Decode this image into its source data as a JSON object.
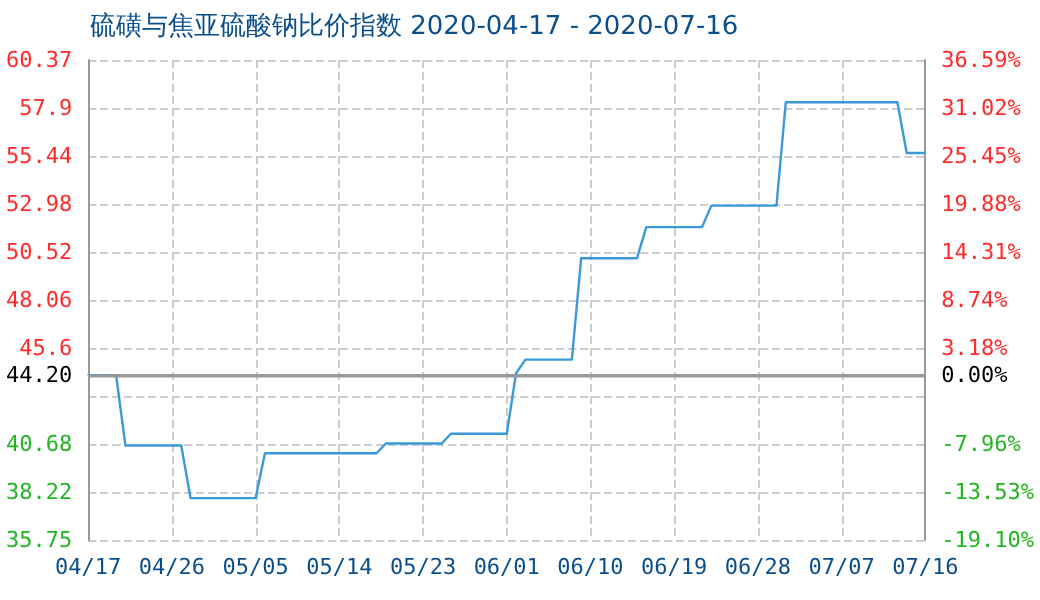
{
  "chart_data": {
    "type": "line",
    "title": "硫磺与焦亚硫酸钠比价指数 2020-04-17 - 2020-07-16",
    "x": [
      "2020-04-17",
      "2020-04-20",
      "2020-04-21",
      "2020-04-27",
      "2020-04-28",
      "2020-05-05",
      "2020-05-06",
      "2020-05-18",
      "2020-05-19",
      "2020-05-25",
      "2020-05-26",
      "2020-06-01",
      "2020-06-02",
      "2020-06-03",
      "2020-06-08",
      "2020-06-09",
      "2020-06-15",
      "2020-06-16",
      "2020-06-22",
      "2020-06-23",
      "2020-06-30",
      "2020-07-01",
      "2020-07-13",
      "2020-07-14",
      "2020-07-16"
    ],
    "series": [
      {
        "color": "#3a9ad9",
        "values": [
          44.2,
          44.2,
          40.6,
          40.6,
          37.9,
          37.9,
          40.2,
          40.2,
          40.7,
          40.7,
          41.2,
          41.2,
          44.3,
          45.0,
          45.0,
          50.2,
          50.2,
          51.8,
          51.8,
          52.9,
          52.9,
          58.2,
          58.2,
          55.6,
          55.6
        ]
      }
    ],
    "xlim": [
      "2020-04-17",
      "2020-07-16"
    ],
    "xticks": [
      {
        "value": "2020-04-17",
        "label": "04/17"
      },
      {
        "value": "2020-04-26",
        "label": "04/26"
      },
      {
        "value": "2020-05-05",
        "label": "05/05"
      },
      {
        "value": "2020-05-14",
        "label": "05/14"
      },
      {
        "value": "2020-05-23",
        "label": "05/23"
      },
      {
        "value": "2020-06-01",
        "label": "06/01"
      },
      {
        "value": "2020-06-10",
        "label": "06/10"
      },
      {
        "value": "2020-06-19",
        "label": "06/19"
      },
      {
        "value": "2020-06-28",
        "label": "06/28"
      },
      {
        "value": "2020-07-07",
        "label": "07/07"
      },
      {
        "value": "2020-07-16",
        "label": "07/16"
      }
    ],
    "ylim": [
      35.75,
      60.37
    ],
    "yticks": [
      {
        "value": 35.75,
        "label": "35.75"
      },
      {
        "value": 38.22,
        "label": "38.22"
      },
      {
        "value": 40.68,
        "label": "40.68"
      },
      {
        "value": 43.14,
        "label": null
      },
      {
        "value": 44.2,
        "label": "44.20"
      },
      {
        "value": 45.6,
        "label": "45.6"
      },
      {
        "value": 48.06,
        "label": "48.06"
      },
      {
        "value": 50.52,
        "label": "50.52"
      },
      {
        "value": 52.98,
        "label": "52.98"
      },
      {
        "value": 55.44,
        "label": "55.44"
      },
      {
        "value": 57.9,
        "label": "57.9"
      },
      {
        "value": 60.37,
        "label": "60.37"
      }
    ],
    "y2lim": [
      -19.1,
      36.59
    ],
    "y2ticks": [
      {
        "value": -19.1,
        "label": "-19.10%"
      },
      {
        "value": -13.53,
        "label": "-13.53%"
      },
      {
        "value": -7.96,
        "label": "-7.96%"
      },
      {
        "value": -2.39,
        "label": null
      },
      {
        "value": 0,
        "label": "0.00%"
      },
      {
        "value": 3.18,
        "label": "3.18%"
      },
      {
        "value": 8.74,
        "label": "8.74%"
      },
      {
        "value": 14.31,
        "label": "14.31%"
      },
      {
        "value": 19.88,
        "label": "19.88%"
      },
      {
        "value": 25.45,
        "label": "25.45%"
      },
      {
        "value": 31.02,
        "label": "31.02%"
      },
      {
        "value": 36.59,
        "label": "36.59%"
      }
    ],
    "ref_lines": [
      {
        "axis": "y",
        "value": 44.2,
        "label": null,
        "color": "#999999"
      }
    ],
    "grid": true,
    "marker": "none",
    "line_style": "solid"
  }
}
